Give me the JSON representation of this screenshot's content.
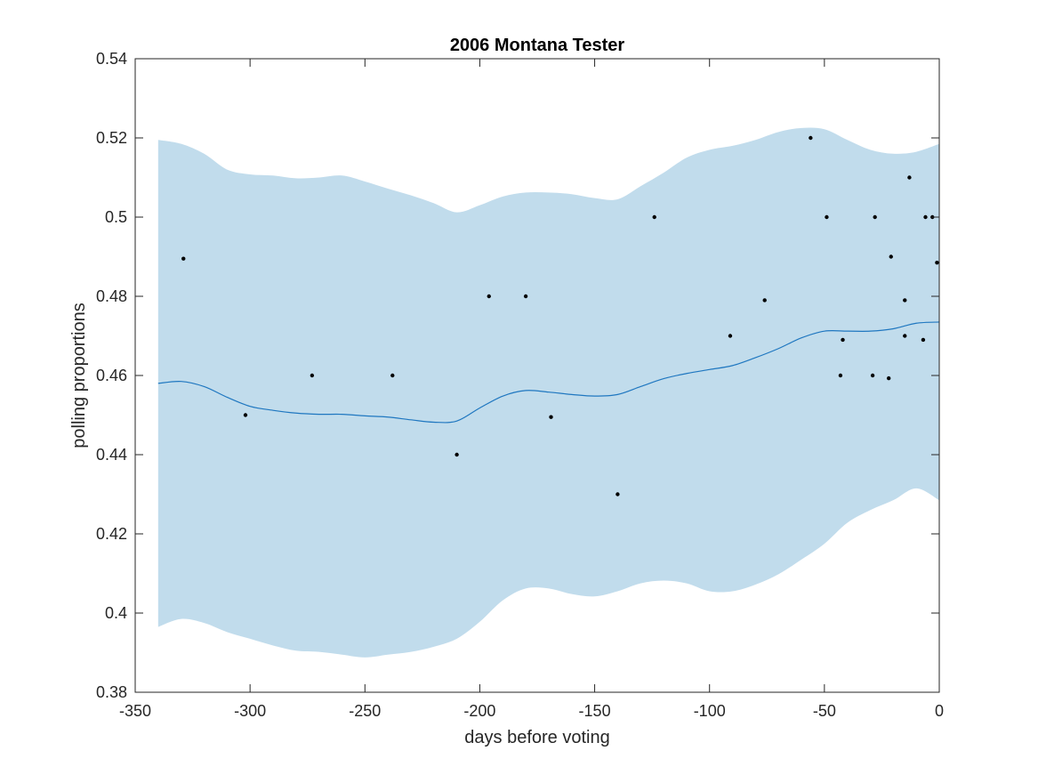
{
  "chart_data": {
    "type": "scatter",
    "title": "2006 Montana Tester",
    "xlabel": "days before voting",
    "ylabel": "polling proportions",
    "xlim": [
      -350,
      0
    ],
    "ylim": [
      0.38,
      0.54
    ],
    "xticks": [
      -350,
      -300,
      -250,
      -200,
      -150,
      -100,
      -50,
      0
    ],
    "yticks": [
      0.38,
      0.4,
      0.42,
      0.44,
      0.46,
      0.48,
      0.5,
      0.52,
      0.54
    ],
    "xtick_labels": [
      "-350",
      "-300",
      "-250",
      "-200",
      "-150",
      "-100",
      "-50",
      "0"
    ],
    "ytick_labels": [
      "0.38",
      "0.4",
      "0.42",
      "0.44",
      "0.46",
      "0.48",
      "0.5",
      "0.52",
      "0.54"
    ],
    "grid": false,
    "colors": {
      "band": "#c1dcec",
      "mean_line": "#1f77c0",
      "points": "#000000",
      "axes": "#262626"
    },
    "series": [
      {
        "kind": "band",
        "x": [
          -340,
          -330,
          -320,
          -310,
          -300,
          -290,
          -280,
          -270,
          -260,
          -250,
          -240,
          -230,
          -220,
          -210,
          -200,
          -190,
          -180,
          -170,
          -160,
          -150,
          -140,
          -130,
          -120,
          -110,
          -100,
          -90,
          -80,
          -70,
          -60,
          -50,
          -40,
          -30,
          -20,
          -10,
          0
        ],
        "upper": [
          0.5195,
          0.5185,
          0.516,
          0.512,
          0.5108,
          0.5105,
          0.5098,
          0.51,
          0.5105,
          0.509,
          0.5072,
          0.5055,
          0.5035,
          0.5012,
          0.503,
          0.5052,
          0.5062,
          0.5062,
          0.5058,
          0.5048,
          0.5045,
          0.5078,
          0.5112,
          0.515,
          0.517,
          0.518,
          0.5195,
          0.5215,
          0.5225,
          0.5222,
          0.5195,
          0.517,
          0.516,
          0.5165,
          0.5185
        ],
        "lower": [
          0.3965,
          0.3985,
          0.3975,
          0.3952,
          0.3935,
          0.3918,
          0.3905,
          0.3902,
          0.3895,
          0.3888,
          0.3895,
          0.3902,
          0.3915,
          0.3935,
          0.3978,
          0.4032,
          0.4062,
          0.4062,
          0.4048,
          0.4042,
          0.4055,
          0.4075,
          0.4082,
          0.4075,
          0.4055,
          0.4055,
          0.4072,
          0.4098,
          0.4135,
          0.4175,
          0.4228,
          0.426,
          0.4285,
          0.4315,
          0.4285
        ]
      },
      {
        "kind": "line",
        "x": [
          -340,
          -330,
          -320,
          -310,
          -300,
          -290,
          -280,
          -270,
          -260,
          -250,
          -240,
          -230,
          -220,
          -210,
          -200,
          -190,
          -180,
          -170,
          -160,
          -150,
          -140,
          -130,
          -120,
          -110,
          -100,
          -90,
          -80,
          -70,
          -60,
          -50,
          -40,
          -30,
          -20,
          -10,
          0
        ],
        "y": [
          0.458,
          0.4585,
          0.4572,
          0.4545,
          0.4522,
          0.4512,
          0.4505,
          0.4502,
          0.4502,
          0.4498,
          0.4495,
          0.4488,
          0.4482,
          0.4485,
          0.4518,
          0.4548,
          0.4562,
          0.4558,
          0.4552,
          0.4548,
          0.4552,
          0.4572,
          0.4592,
          0.4605,
          0.4615,
          0.4625,
          0.4645,
          0.4668,
          0.4695,
          0.4712,
          0.4712,
          0.4712,
          0.4718,
          0.4732,
          0.4735
        ]
      },
      {
        "kind": "points",
        "x": [
          -329,
          -302,
          -273,
          -238,
          -210,
          -196,
          -180,
          -169,
          -140,
          -124,
          -91,
          -76,
          -56,
          -49,
          -43,
          -42,
          -29,
          -28,
          -22,
          -21,
          -15,
          -15,
          -13,
          -7,
          -6,
          -3,
          -1
        ],
        "y": [
          0.4895,
          0.45,
          0.46,
          0.46,
          0.44,
          0.48,
          0.48,
          0.4495,
          0.43,
          0.5,
          0.47,
          0.479,
          0.52,
          0.5,
          0.46,
          0.469,
          0.46,
          0.5,
          0.4593,
          0.49,
          0.479,
          0.47,
          0.51,
          0.469,
          0.5,
          0.5,
          0.4885
        ]
      }
    ]
  }
}
